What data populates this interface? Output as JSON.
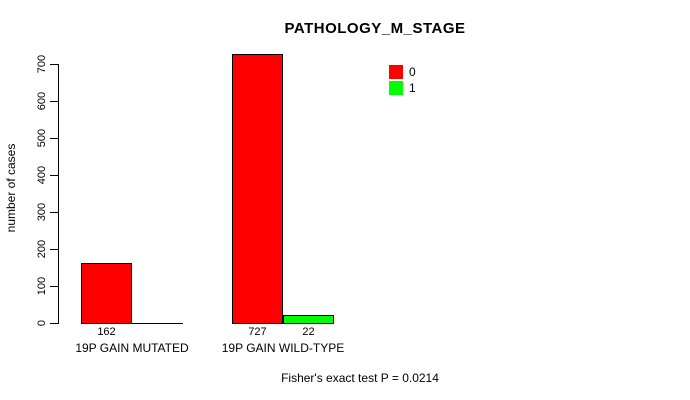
{
  "chart_data": {
    "type": "bar",
    "title": "PATHOLOGY_M_STAGE",
    "ylabel": "number of cases",
    "xlabel": "",
    "ylim": [
      0,
      700
    ],
    "yticks": [
      0,
      100,
      200,
      300,
      400,
      500,
      600,
      700
    ],
    "categories": [
      "19P GAIN MUTATED",
      "19P GAIN WILD-TYPE"
    ],
    "series": [
      {
        "name": "0",
        "color": "#ff0000",
        "values": [
          162,
          727
        ]
      },
      {
        "name": "1",
        "color": "#00ff00",
        "values": [
          0,
          22
        ]
      }
    ],
    "bar_value_labels": [
      [
        "162",
        ""
      ],
      [
        "727",
        "22"
      ]
    ],
    "legend_position": "top-right",
    "grid": false,
    "annotation": "Fisher's exact test P = 0.0214",
    "colors": {
      "series0": "#ff0000",
      "series1": "#00ff00",
      "axis": "#000000",
      "background": "#ffffff"
    }
  }
}
